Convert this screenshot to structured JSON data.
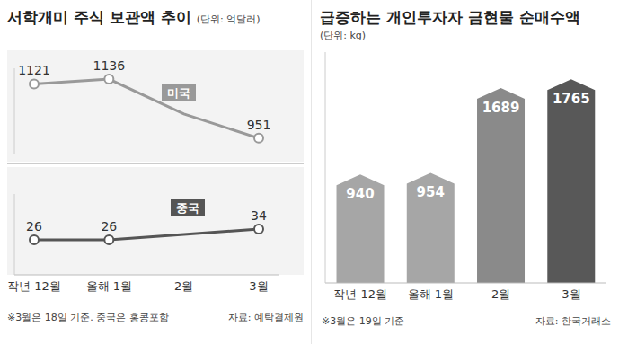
{
  "chart_data": [
    {
      "type": "line",
      "title": "서학개미 주식 보관액 추이",
      "subtitle": "(단위: 억달러)",
      "categories": [
        "작년 12월",
        "올해 1월",
        "2월",
        "3월"
      ],
      "series": [
        {
          "name": "미국",
          "color": "#999999",
          "marker": "circle",
          "values": [
            1121,
            1136,
            1027,
            951
          ],
          "value_labels": [
            "1121",
            "1136",
            null,
            "951"
          ]
        }
      ],
      "ylim": [
        900,
        1170
      ],
      "data_labels": true,
      "tick_labels": false
    },
    {
      "type": "line",
      "categories": [
        "작년 12월",
        "올해 1월",
        "2월",
        "3월"
      ],
      "series": [
        {
          "name": "중국",
          "color": "#555555",
          "marker": "circle",
          "values": [
            26,
            26,
            30,
            34
          ],
          "value_labels": [
            "26",
            "26",
            null,
            "34"
          ]
        }
      ],
      "ylim": [
        0,
        60
      ],
      "data_labels": true,
      "tick_labels": "x",
      "note": "※3월은 18일 기준. 중국은 홍콩포함",
      "source": "자료: 예탁결제원"
    },
    {
      "type": "bar",
      "title": "급증하는 개인투자자 금현물 순매수액",
      "subtitle": "(단위: kg)",
      "categories": [
        "작년 12월",
        "올해 1월",
        "2월",
        "3월"
      ],
      "values": [
        940,
        954,
        1689,
        1765
      ],
      "colors": [
        "#a6a6a6",
        "#a6a6a6",
        "#8a8a8a",
        "#585858"
      ],
      "ylim": [
        0,
        2000
      ],
      "data_labels": true,
      "tick_labels": "x",
      "note": "※3월은 19일 기준",
      "source": "자료: 한국거래소"
    }
  ]
}
